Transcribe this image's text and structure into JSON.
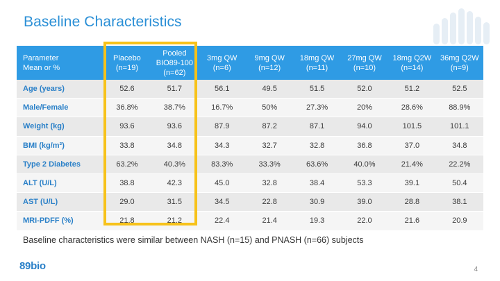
{
  "slide": {
    "title": "Baseline Characteristics",
    "footnote": "Baseline characteristics were similar between NASH (n=15) and PNASH (n=66) subjects",
    "page_number": "4",
    "logo_text": "89bio"
  },
  "table": {
    "header": {
      "param_line1": "Parameter",
      "param_line2": "Mean or %",
      "columns": [
        {
          "line1": "Placebo",
          "line2": "(n=19)",
          "line3": ""
        },
        {
          "line1": "Pooled",
          "line2": "BIO89-100",
          "line3": "(n=62)"
        },
        {
          "line1": "3mg QW",
          "line2": "(n=6)",
          "line3": ""
        },
        {
          "line1": "9mg QW",
          "line2": "(n=12)",
          "line3": ""
        },
        {
          "line1": "18mg QW",
          "line2": "(n=11)",
          "line3": ""
        },
        {
          "line1": "27mg QW",
          "line2": "(n=10)",
          "line3": ""
        },
        {
          "line1": "18mg Q2W",
          "line2": "(n=14)",
          "line3": ""
        },
        {
          "line1": "36mg Q2W",
          "line2": "(n=9)",
          "line3": ""
        }
      ]
    },
    "rows": [
      {
        "label": "Age (years)",
        "values": [
          "52.6",
          "51.7",
          "56.1",
          "49.5",
          "51.5",
          "52.0",
          "51.2",
          "52.5"
        ]
      },
      {
        "label": "Male/Female",
        "values": [
          "36.8%",
          "38.7%",
          "16.7%",
          "50%",
          "27.3%",
          "20%",
          "28.6%",
          "88.9%"
        ]
      },
      {
        "label": "Weight (kg)",
        "values": [
          "93.6",
          "93.6",
          "87.9",
          "87.2",
          "87.1",
          "94.0",
          "101.5",
          "101.1"
        ]
      },
      {
        "label": "BMI (kg/m²)",
        "values": [
          "33.8",
          "34.8",
          "34.3",
          "32.7",
          "32.8",
          "36.8",
          "37.0",
          "34.8"
        ]
      },
      {
        "label": "Type 2 Diabetes",
        "values": [
          "63.2%",
          "40.3%",
          "83.3%",
          "33.3%",
          "63.6%",
          "40.0%",
          "21.4%",
          "22.2%"
        ]
      },
      {
        "label": "ALT (U/L)",
        "values": [
          "38.8",
          "42.3",
          "45.0",
          "32.8",
          "38.4",
          "53.3",
          "39.1",
          "50.4"
        ]
      },
      {
        "label": "AST (U/L)",
        "values": [
          "29.0",
          "31.5",
          "34.5",
          "22.8",
          "30.9",
          "39.0",
          "28.8",
          "38.1"
        ]
      },
      {
        "label": "MRI-PDFF (%)",
        "values": [
          "21.8",
          "21.2",
          "22.4",
          "21.4",
          "19.3",
          "22.0",
          "21.6",
          "20.9"
        ]
      }
    ]
  },
  "colors": {
    "title": "#2a8fd6",
    "header_bg": "#2f9be4",
    "row_label": "#2a80c8",
    "highlight_border": "#f7c21a"
  },
  "icons": {
    "decoration": "bar-pattern-icon",
    "logo": "89bio-logo"
  }
}
